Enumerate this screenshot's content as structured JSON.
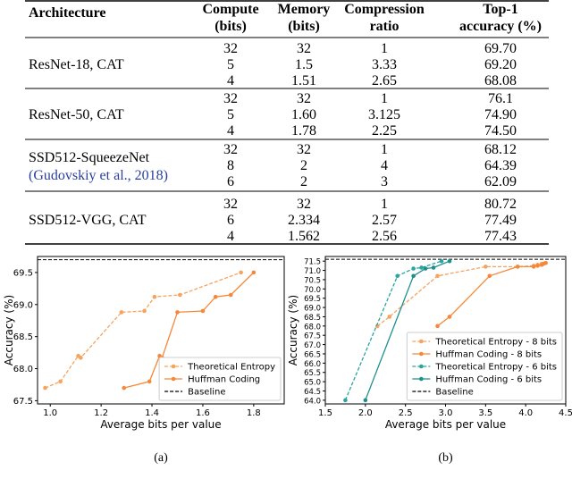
{
  "table": {
    "header": [
      [
        "Architecture"
      ],
      [
        "Compute",
        "(bits)"
      ],
      [
        "Memory",
        "(bits)"
      ],
      [
        "Compression",
        "ratio"
      ],
      [
        "Top-1",
        "accuracy (%)"
      ]
    ],
    "groups": [
      {
        "label": [
          "ResNet-18, CAT"
        ],
        "rows": [
          [
            "32",
            "32",
            "1",
            "69.70"
          ],
          [
            "5",
            "1.5",
            "3.33",
            "69.20"
          ],
          [
            "4",
            "1.51",
            "2.65",
            "68.08"
          ]
        ]
      },
      {
        "label": [
          "ResNet-50, CAT"
        ],
        "rows": [
          [
            "32",
            "32",
            "1",
            "76.1"
          ],
          [
            "5",
            "1.60",
            "3.125",
            "74.90"
          ],
          [
            "4",
            "1.78",
            "2.25",
            "74.50"
          ]
        ]
      },
      {
        "label": [
          "SSD512-SqueezeNet",
          "(Gudovskiy et al., 2018)"
        ],
        "rows": [
          [
            "32",
            "32",
            "1",
            "68.12"
          ],
          [
            "8",
            "2",
            "4",
            "64.39"
          ],
          [
            "6",
            "2",
            "3",
            "62.09"
          ]
        ]
      },
      {
        "label": [
          "SSD512-VGG, CAT"
        ],
        "rows": [
          [
            "32",
            "32",
            "1",
            "80.72"
          ],
          [
            "6",
            "2.334",
            "2.57",
            "77.49"
          ],
          [
            "4",
            "1.562",
            "2.56",
            "77.43"
          ]
        ]
      }
    ]
  },
  "chart_data": [
    {
      "type": "line",
      "x_label": "Average bits per value",
      "y_label": "Accuracy (%)",
      "caption": "(a)",
      "xlim": [
        0.95,
        1.92
      ],
      "xticks": [
        {
          "value": 1.0,
          "label": "1.0"
        },
        1.2,
        1.4,
        1.6,
        1.8
      ],
      "ylim": [
        67.45,
        69.75
      ],
      "yticks": [
        67.5,
        {
          "value": 68.0,
          "label": "68.0"
        },
        68.5,
        {
          "value": 69.0,
          "label": "69.0"
        },
        69.5
      ],
      "legend": "lower right",
      "series": [
        {
          "name": "Theoretical Entropy",
          "color": "#f6a35e",
          "dashed": true,
          "x": [
            0.98,
            1.04,
            1.11,
            1.12,
            1.28,
            1.37,
            1.41,
            1.51,
            1.75
          ],
          "values": [
            67.7,
            67.8,
            68.2,
            68.17,
            68.88,
            68.9,
            69.12,
            69.15,
            69.5
          ]
        },
        {
          "name": "Huffman Coding",
          "color": "#f5883a",
          "dashed": false,
          "x": [
            1.29,
            1.39,
            1.43,
            1.44,
            1.5,
            1.6,
            1.65,
            1.71,
            1.8
          ],
          "values": [
            67.7,
            67.8,
            68.2,
            68.17,
            68.88,
            68.9,
            69.12,
            69.15,
            69.5
          ]
        }
      ],
      "baseline": {
        "name": "Baseline",
        "value": 69.7
      }
    },
    {
      "type": "line",
      "x_label": "Average bits per value",
      "y_label": "Accuracy (%)",
      "caption": "(b)",
      "xlim": [
        1.5,
        4.5
      ],
      "xticks": [
        1.5,
        {
          "value": 2.0,
          "label": "2.0"
        },
        2.5,
        {
          "value": 3.0,
          "label": "3.0"
        },
        3.5,
        {
          "value": 4.0,
          "label": "4.0"
        },
        4.5
      ],
      "ylim": [
        63.8,
        71.75
      ],
      "yticks": [
        {
          "value": 64.0,
          "label": "64.0"
        },
        64.5,
        {
          "value": 65.0,
          "label": "65.0"
        },
        65.5,
        {
          "value": 66.0,
          "label": "66.0"
        },
        66.5,
        {
          "value": 67.0,
          "label": "67.0"
        },
        67.5,
        {
          "value": 68.0,
          "label": "68.0"
        },
        68.5,
        {
          "value": 69.0,
          "label": "69.0"
        },
        69.5,
        {
          "value": 70.0,
          "label": "70.0"
        },
        70.5,
        {
          "value": 71.0,
          "label": "71.0"
        },
        71.5
      ],
      "legend": "lower right",
      "series": [
        {
          "name": "Theoretical Entropy - 8 bits",
          "color": "#f6a35e",
          "dashed": true,
          "x": [
            2.15,
            2.3,
            2.9,
            3.5,
            3.9,
            4.1,
            4.15,
            4.2,
            4.25
          ],
          "values": [
            68.0,
            68.5,
            70.7,
            71.2,
            71.2,
            71.25,
            71.3,
            71.35,
            71.4
          ]
        },
        {
          "name": "Huffman Coding - 8 bits",
          "color": "#f5883a",
          "dashed": false,
          "x": [
            2.9,
            3.05,
            3.55,
            3.9,
            4.1,
            4.15,
            4.2,
            4.22,
            4.25
          ],
          "values": [
            68.0,
            68.5,
            70.7,
            71.2,
            71.2,
            71.25,
            71.3,
            71.35,
            71.4
          ]
        },
        {
          "name": "Theoretical Entropy - 6 bits",
          "color": "#2aa5a0",
          "dashed": true,
          "x": [
            1.75,
            2.4,
            2.6,
            2.7,
            2.95
          ],
          "values": [
            64.0,
            70.7,
            71.1,
            71.15,
            71.5
          ]
        },
        {
          "name": "Huffman Coding - 6 bits",
          "color": "#1f8f8c",
          "dashed": false,
          "x": [
            2.0,
            2.6,
            2.75,
            2.85,
            3.05
          ],
          "values": [
            64.0,
            70.7,
            71.1,
            71.15,
            71.5
          ]
        }
      ],
      "baseline": {
        "name": "Baseline",
        "value": 71.6
      }
    }
  ]
}
